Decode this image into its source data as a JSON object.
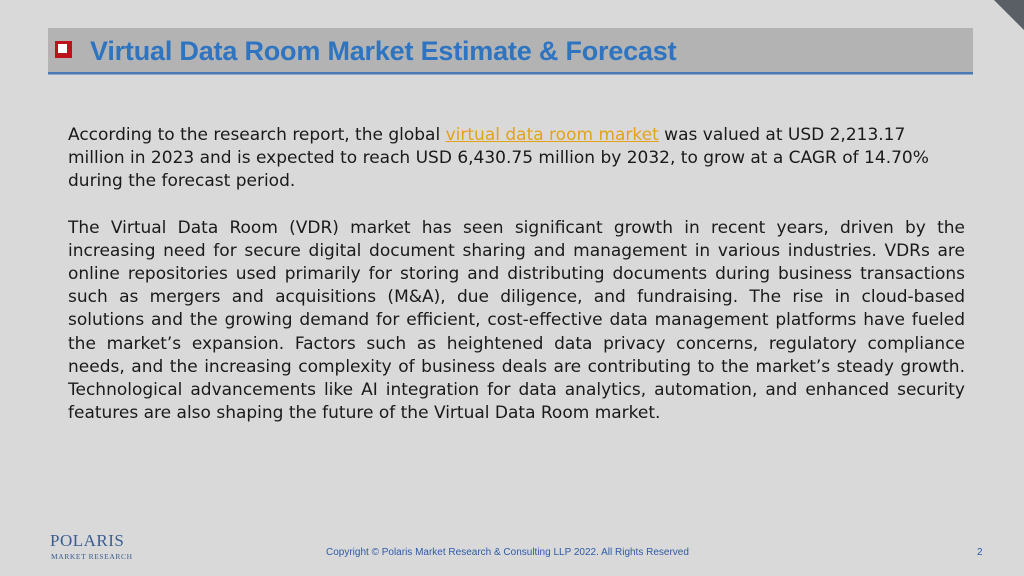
{
  "slide": {
    "title": "Virtual Data Room Market Estimate & Forecast",
    "paragraph1": {
      "before_link": "According to the research report, the global ",
      "link_text": "virtual data room market",
      "after_link": " was valued at USD 2,213.17 million in 2023 and is expected to reach USD 6,430.75 million by 2032, to grow at a CAGR of 14.70% during the forecast period."
    },
    "paragraph2": "The Virtual Data Room (VDR) market has seen significant growth in recent years, driven by the increasing need for secure digital document sharing and management in various industries. VDRs are online repositories used primarily for storing and distributing documents during business transactions such as mergers and acquisitions (M&A), due diligence, and fundraising. The rise in cloud-based solutions and the growing demand for efficient, cost-effective data management platforms have fueled the market’s expansion. Factors such as heightened data privacy concerns, regulatory compliance needs, and the increasing complexity of business deals are contributing to the market’s steady growth. Technological advancements like AI integration for data analytics, automation, and enhanced security features are also shaping the future of the Virtual Data Room market."
  },
  "logo": {
    "main": "POLARIS",
    "sub": "MARKET RESEARCH"
  },
  "footer": {
    "copyright": "Copyright © Polaris Market Research & Consulting LLP 2022. All Rights Reserved",
    "page_number": "2"
  },
  "colors": {
    "title": "#2e74c0",
    "link": "#e3a21a",
    "bullet": "#c0101c",
    "footer": "#2e5aa8"
  }
}
